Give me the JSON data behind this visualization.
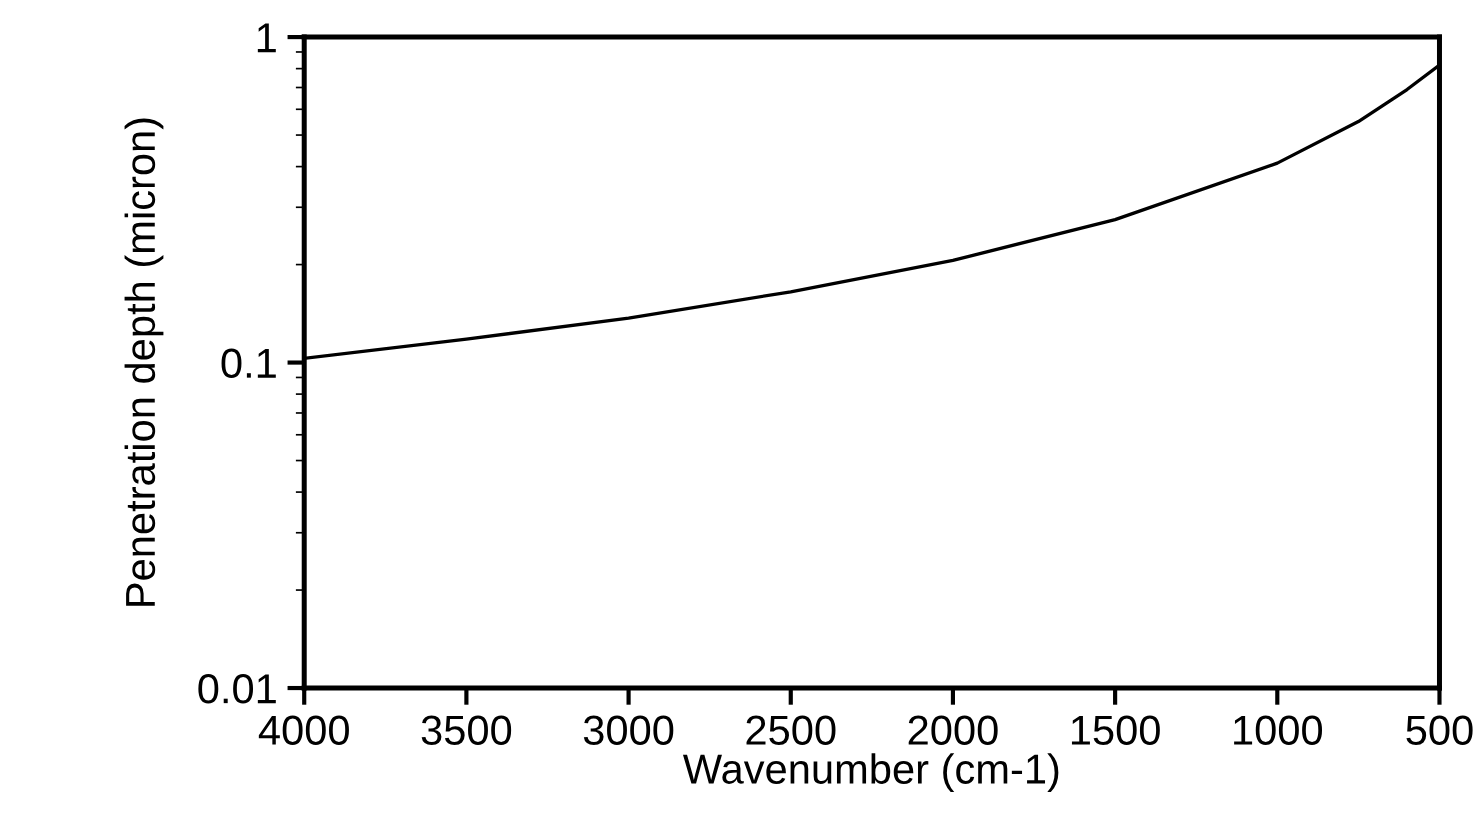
{
  "chart_data": {
    "type": "line",
    "xlabel": "Wavenumber (cm-1)",
    "ylabel": "Penetration depth (micron)",
    "x": [
      4000,
      3500,
      3000,
      2500,
      2000,
      1500,
      1000,
      750,
      600,
      500
    ],
    "series": [
      {
        "color": "#000000",
        "values": [
          0.103,
          0.118,
          0.137,
          0.165,
          0.206,
          0.275,
          0.41,
          0.55,
          0.69,
          0.82
        ]
      }
    ],
    "log": "y",
    "xlim": [
      4000,
      500
    ],
    "ylim": [
      0.01,
      1
    ],
    "xticks": [
      4000,
      3500,
      3000,
      2500,
      2000,
      1500,
      1000,
      500
    ],
    "yticks": [
      0.01,
      0.1,
      1
    ],
    "grid": false,
    "legend": false,
    "marker": "none",
    "line_style": "solid"
  }
}
